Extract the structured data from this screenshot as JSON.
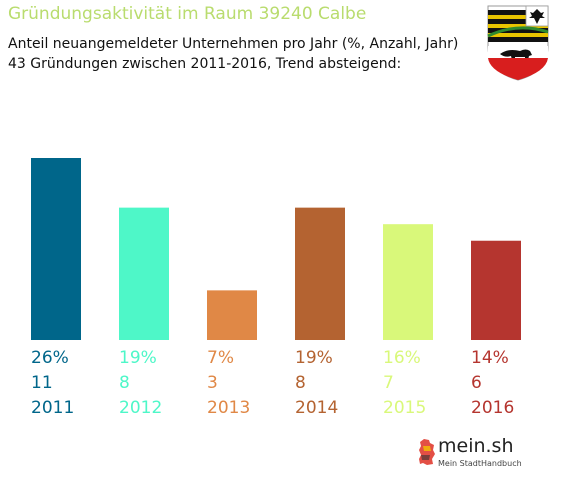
{
  "header": {
    "title": "Gründungsaktivität im Raum 39240 Calbe",
    "subtitle_line1": "Anteil neuangemeldeter Unternehmen pro Jahr (%, Anzahl, Jahr)",
    "subtitle_line2": "43 Gründungen zwischen 2011-2016, Trend absteigend:"
  },
  "crest": {
    "icon": "sachsen-anhalt-coat-of-arms-icon"
  },
  "logo": {
    "name": "mein.sh",
    "tagline": "Mein StadtHandbuch",
    "icon": "germany-map-icon"
  },
  "chart_data": {
    "type": "bar",
    "categories": [
      "2011",
      "2012",
      "2013",
      "2014",
      "2015",
      "2016"
    ],
    "percent_labels": [
      "26%",
      "19%",
      "7%",
      "19%",
      "16%",
      "14%"
    ],
    "values": [
      11,
      8,
      3,
      8,
      7,
      6
    ],
    "colors": [
      "#00668a",
      "#4ef7c8",
      "#e08846",
      "#b46331",
      "#d9f87a",
      "#b5352f"
    ],
    "ylim": [
      0,
      11
    ]
  }
}
